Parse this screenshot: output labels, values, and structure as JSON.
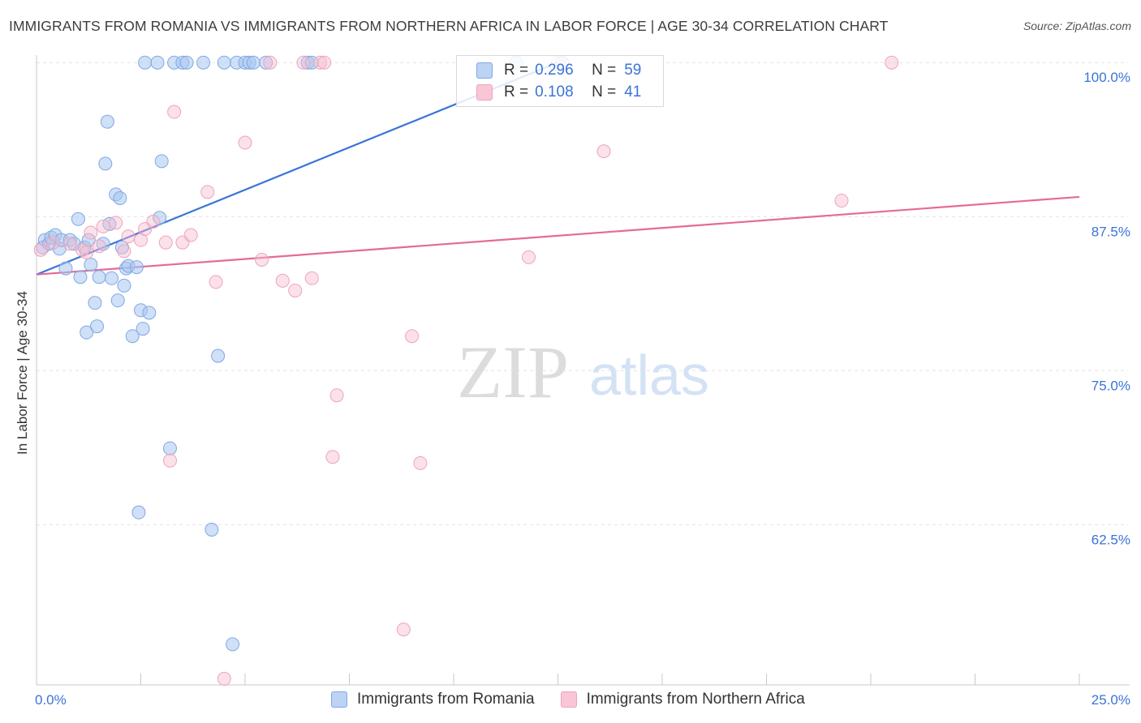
{
  "header": {
    "title": "IMMIGRANTS FROM ROMANIA VS IMMIGRANTS FROM NORTHERN AFRICA IN LABOR FORCE | AGE 30-34 CORRELATION CHART",
    "source": "Source: ZipAtlas.com"
  },
  "legend": {
    "series1": {
      "r_label": "R =",
      "r_value": "0.296",
      "n_label": "N =",
      "n_value": "59"
    },
    "series2": {
      "r_label": "R =",
      "r_value": "0.108",
      "n_label": "N =",
      "n_value": "41"
    }
  },
  "watermark": {
    "zip": "ZIP",
    "atlas": "atlas"
  },
  "colors": {
    "blue": "#3a74d8",
    "pink": "#e36b97",
    "blue_fill": "#bcd3f4",
    "pink_fill": "#f9c6d6"
  },
  "chart_data": {
    "type": "scatter",
    "title": "IMMIGRANTS FROM ROMANIA VS IMMIGRANTS FROM NORTHERN AFRICA IN LABOR FORCE | AGE 30-34 CORRELATION CHART",
    "xlabel": "",
    "ylabel": "In Labor Force | Age 30-34",
    "xlim": [
      0,
      25
    ],
    "ylim": [
      49.5,
      101
    ],
    "x_tick_labels": [
      "0.0%",
      "25.0%"
    ],
    "y_ticks": [
      62.5,
      75.0,
      87.5,
      100.0
    ],
    "y_tick_labels": [
      "62.5%",
      "75.0%",
      "87.5%",
      "100.0%"
    ],
    "series": [
      {
        "name": "Immigrants from Romania",
        "color": "#3a74d8",
        "trend": {
          "x": [
            0,
            12.5
          ],
          "y": [
            82.8,
            100.0
          ]
        },
        "points": [
          [
            0.15,
            85.0
          ],
          [
            0.2,
            85.6
          ],
          [
            0.3,
            85.3
          ],
          [
            0.35,
            85.8
          ],
          [
            0.45,
            86.0
          ],
          [
            0.55,
            84.9
          ],
          [
            0.6,
            85.6
          ],
          [
            0.7,
            83.3
          ],
          [
            0.8,
            85.6
          ],
          [
            0.9,
            85.3
          ],
          [
            1.0,
            87.3
          ],
          [
            1.05,
            82.6
          ],
          [
            1.15,
            85.0
          ],
          [
            1.2,
            78.1
          ],
          [
            1.25,
            85.6
          ],
          [
            1.3,
            83.6
          ],
          [
            1.4,
            80.5
          ],
          [
            1.45,
            78.6
          ],
          [
            1.5,
            82.6
          ],
          [
            1.6,
            85.3
          ],
          [
            1.65,
            91.8
          ],
          [
            1.7,
            95.2
          ],
          [
            1.75,
            86.9
          ],
          [
            1.8,
            82.5
          ],
          [
            1.9,
            89.3
          ],
          [
            1.95,
            80.7
          ],
          [
            2.0,
            89.0
          ],
          [
            2.05,
            85.0
          ],
          [
            2.1,
            81.9
          ],
          [
            2.15,
            83.3
          ],
          [
            2.2,
            83.5
          ],
          [
            2.3,
            77.8
          ],
          [
            2.4,
            83.4
          ],
          [
            2.45,
            63.5
          ],
          [
            2.5,
            79.9
          ],
          [
            2.55,
            78.4
          ],
          [
            2.6,
            100.0
          ],
          [
            2.7,
            79.7
          ],
          [
            2.9,
            100.0
          ],
          [
            2.95,
            87.4
          ],
          [
            3.0,
            92.0
          ],
          [
            3.2,
            68.7
          ],
          [
            3.3,
            100.0
          ],
          [
            3.5,
            100.0
          ],
          [
            3.6,
            100.0
          ],
          [
            4.0,
            100.0
          ],
          [
            4.2,
            62.1
          ],
          [
            4.35,
            76.2
          ],
          [
            4.5,
            100.0
          ],
          [
            4.7,
            52.8
          ],
          [
            4.8,
            100.0
          ],
          [
            5.0,
            100.0
          ],
          [
            5.1,
            100.0
          ],
          [
            5.2,
            100.0
          ],
          [
            5.5,
            100.0
          ],
          [
            6.5,
            100.0
          ],
          [
            6.6,
            100.0
          ],
          [
            11.5,
            100.0
          ],
          [
            12.6,
            100.0
          ]
        ]
      },
      {
        "name": "Immigrants from Northern Africa",
        "color": "#e36b97",
        "trend": {
          "x": [
            0,
            25
          ],
          "y": [
            82.8,
            89.1
          ]
        },
        "points": [
          [
            0.1,
            84.8
          ],
          [
            0.4,
            85.4
          ],
          [
            0.8,
            85.3
          ],
          [
            1.1,
            84.8
          ],
          [
            1.2,
            84.6
          ],
          [
            1.3,
            86.2
          ],
          [
            1.5,
            85.1
          ],
          [
            1.6,
            86.7
          ],
          [
            1.9,
            87.0
          ],
          [
            2.1,
            84.7
          ],
          [
            2.2,
            85.9
          ],
          [
            2.5,
            85.6
          ],
          [
            2.6,
            86.5
          ],
          [
            2.8,
            87.1
          ],
          [
            3.1,
            85.4
          ],
          [
            3.2,
            67.7
          ],
          [
            3.3,
            96.0
          ],
          [
            3.5,
            85.4
          ],
          [
            3.7,
            86.0
          ],
          [
            4.1,
            89.5
          ],
          [
            4.3,
            82.2
          ],
          [
            4.5,
            50.0
          ],
          [
            5.0,
            93.5
          ],
          [
            5.4,
            84.0
          ],
          [
            5.6,
            100.0
          ],
          [
            5.9,
            82.3
          ],
          [
            6.2,
            81.5
          ],
          [
            6.4,
            100.0
          ],
          [
            6.6,
            82.5
          ],
          [
            6.8,
            100.0
          ],
          [
            6.9,
            100.0
          ],
          [
            7.1,
            68.0
          ],
          [
            7.2,
            73.0
          ],
          [
            8.8,
            54.0
          ],
          [
            9.0,
            77.8
          ],
          [
            9.2,
            67.5
          ],
          [
            11.8,
            84.2
          ],
          [
            12.5,
            100.0
          ],
          [
            13.6,
            92.8
          ],
          [
            19.3,
            88.8
          ],
          [
            20.5,
            100.0
          ]
        ]
      }
    ]
  },
  "bottom_legend": {
    "series1": "Immigrants from Romania",
    "series2": "Immigrants from Northern Africa"
  }
}
